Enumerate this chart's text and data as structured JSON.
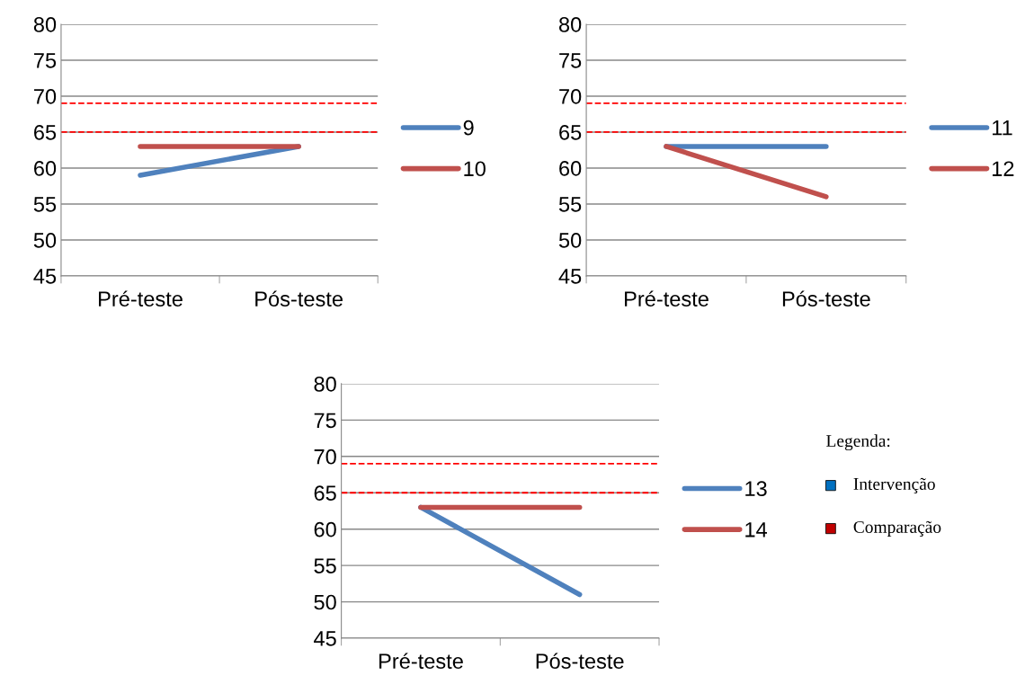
{
  "chart_data": [
    {
      "type": "line",
      "categories": [
        "Pré-teste",
        "Pós-teste"
      ],
      "ylim": [
        45,
        80
      ],
      "yticks": [
        45,
        50,
        55,
        60,
        65,
        70,
        75,
        80
      ],
      "grid": "y",
      "legend": "right",
      "marker": "none",
      "line_style": "solid",
      "series": [
        {
          "name": "9",
          "color": "#4f81bd",
          "values": [
            59,
            63
          ]
        },
        {
          "name": "10",
          "color": "#c0504d",
          "values": [
            63,
            63
          ]
        }
      ],
      "ref_lines": [
        {
          "axis": "y",
          "value": 65,
          "color": "#ff0000",
          "line_style": "dashed"
        },
        {
          "axis": "y",
          "value": 69,
          "color": "#ff0000",
          "line_style": "dashed"
        }
      ]
    },
    {
      "type": "line",
      "categories": [
        "Pré-teste",
        "Pós-teste"
      ],
      "ylim": [
        45,
        80
      ],
      "yticks": [
        45,
        50,
        55,
        60,
        65,
        70,
        75,
        80
      ],
      "grid": "y",
      "legend": "right",
      "marker": "none",
      "line_style": "solid",
      "series": [
        {
          "name": "11",
          "color": "#4f81bd",
          "values": [
            63,
            63
          ]
        },
        {
          "name": "12",
          "color": "#c0504d",
          "values": [
            63,
            56
          ]
        }
      ],
      "ref_lines": [
        {
          "axis": "y",
          "value": 65,
          "color": "#ff0000",
          "line_style": "dashed"
        },
        {
          "axis": "y",
          "value": 69,
          "color": "#ff0000",
          "line_style": "dashed"
        }
      ]
    },
    {
      "type": "line",
      "categories": [
        "Pré-teste",
        "Pós-teste"
      ],
      "ylim": [
        45,
        80
      ],
      "yticks": [
        45,
        50,
        55,
        60,
        65,
        70,
        75,
        80
      ],
      "grid": "y",
      "legend": "right",
      "marker": "none",
      "line_style": "solid",
      "series": [
        {
          "name": "13",
          "color": "#4f81bd",
          "values": [
            63,
            51
          ]
        },
        {
          "name": "14",
          "color": "#c0504d",
          "values": [
            63,
            63
          ]
        }
      ],
      "ref_lines": [
        {
          "axis": "y",
          "value": 65,
          "color": "#ff0000",
          "line_style": "dashed"
        },
        {
          "axis": "y",
          "value": 69,
          "color": "#ff0000",
          "line_style": "dashed"
        }
      ]
    },
    {
      "type": "other",
      "title": "Legenda:",
      "annotations": [
        "Intervenção",
        "Comparação"
      ],
      "colors": [
        "#0070c0",
        "#c00000"
      ]
    }
  ]
}
